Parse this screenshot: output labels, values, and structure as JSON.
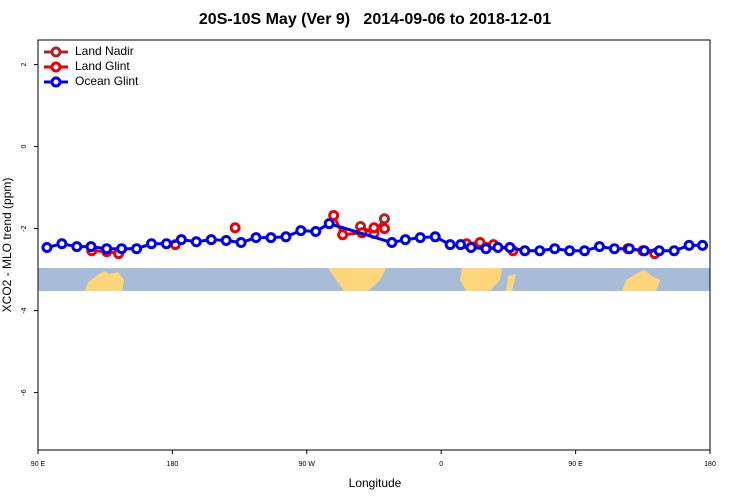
{
  "chart_data": {
    "type": "line",
    "title": "20S-10S May (Ver 9)   2014-09-06 to 2018-12-01",
    "xlabel": "Longitude",
    "ylabel": "XCO2 - MLO trend (ppm)",
    "xlim": [
      90,
      540
    ],
    "xticks": [
      {
        "value": 90,
        "label": "90 E"
      },
      {
        "value": 180,
        "label": "180"
      },
      {
        "value": 270,
        "label": "90 W"
      },
      {
        "value": 360,
        "label": "0"
      },
      {
        "value": 450,
        "label": "90 E"
      },
      {
        "value": 540,
        "label": "180"
      }
    ],
    "ylim": [
      -7.4,
      2.6
    ],
    "yticks": [
      -6,
      -4,
      -2,
      0,
      2
    ],
    "legend": "top-left",
    "series": [
      {
        "name": "Land Nadir",
        "color": "#a52a2a",
        "x": [
          306,
          315,
          322
        ],
        "values": [
          -1.95,
          -2.12,
          -1.76
        ]
      },
      {
        "name": "Land Glint",
        "color": "#ee0000",
        "x": [
          126,
          136,
          144,
          null,
          182,
          null,
          222,
          null,
          288,
          294,
          307,
          315,
          322,
          null,
          377,
          386,
          395,
          408,
          null,
          485,
          495,
          503
        ],
        "values": [
          -2.54,
          -2.56,
          -2.61,
          null,
          -2.39,
          null,
          -1.98,
          null,
          -1.68,
          -2.15,
          -2.1,
          -1.98,
          -2.0,
          null,
          -2.37,
          -2.34,
          -2.39,
          -2.54,
          null,
          -2.49,
          -2.54,
          -2.61
        ]
      },
      {
        "name": "Ocean Glint",
        "color": "#0000ee",
        "x": [
          96,
          106,
          116,
          125.5,
          136,
          146,
          156,
          166,
          176,
          186,
          196,
          206,
          216,
          226,
          236,
          246,
          256,
          266,
          276,
          285,
          327,
          336,
          346,
          356,
          366,
          373,
          380,
          390,
          398,
          406,
          416,
          426,
          436,
          446,
          456,
          466,
          476,
          486,
          496,
          506,
          516,
          526,
          535
        ],
        "values": [
          -2.46,
          -2.37,
          -2.44,
          -2.44,
          -2.49,
          -2.49,
          -2.49,
          -2.37,
          -2.37,
          -2.27,
          -2.32,
          -2.27,
          -2.29,
          -2.34,
          -2.22,
          -2.22,
          -2.2,
          -2.05,
          -2.07,
          -1.88,
          -2.34,
          -2.27,
          -2.22,
          -2.2,
          -2.39,
          -2.39,
          -2.46,
          -2.49,
          -2.46,
          -2.46,
          -2.54,
          -2.54,
          -2.49,
          -2.54,
          -2.54,
          -2.44,
          -2.49,
          -2.49,
          -2.54,
          -2.54,
          -2.54,
          -2.41,
          -2.41
        ]
      }
    ]
  }
}
